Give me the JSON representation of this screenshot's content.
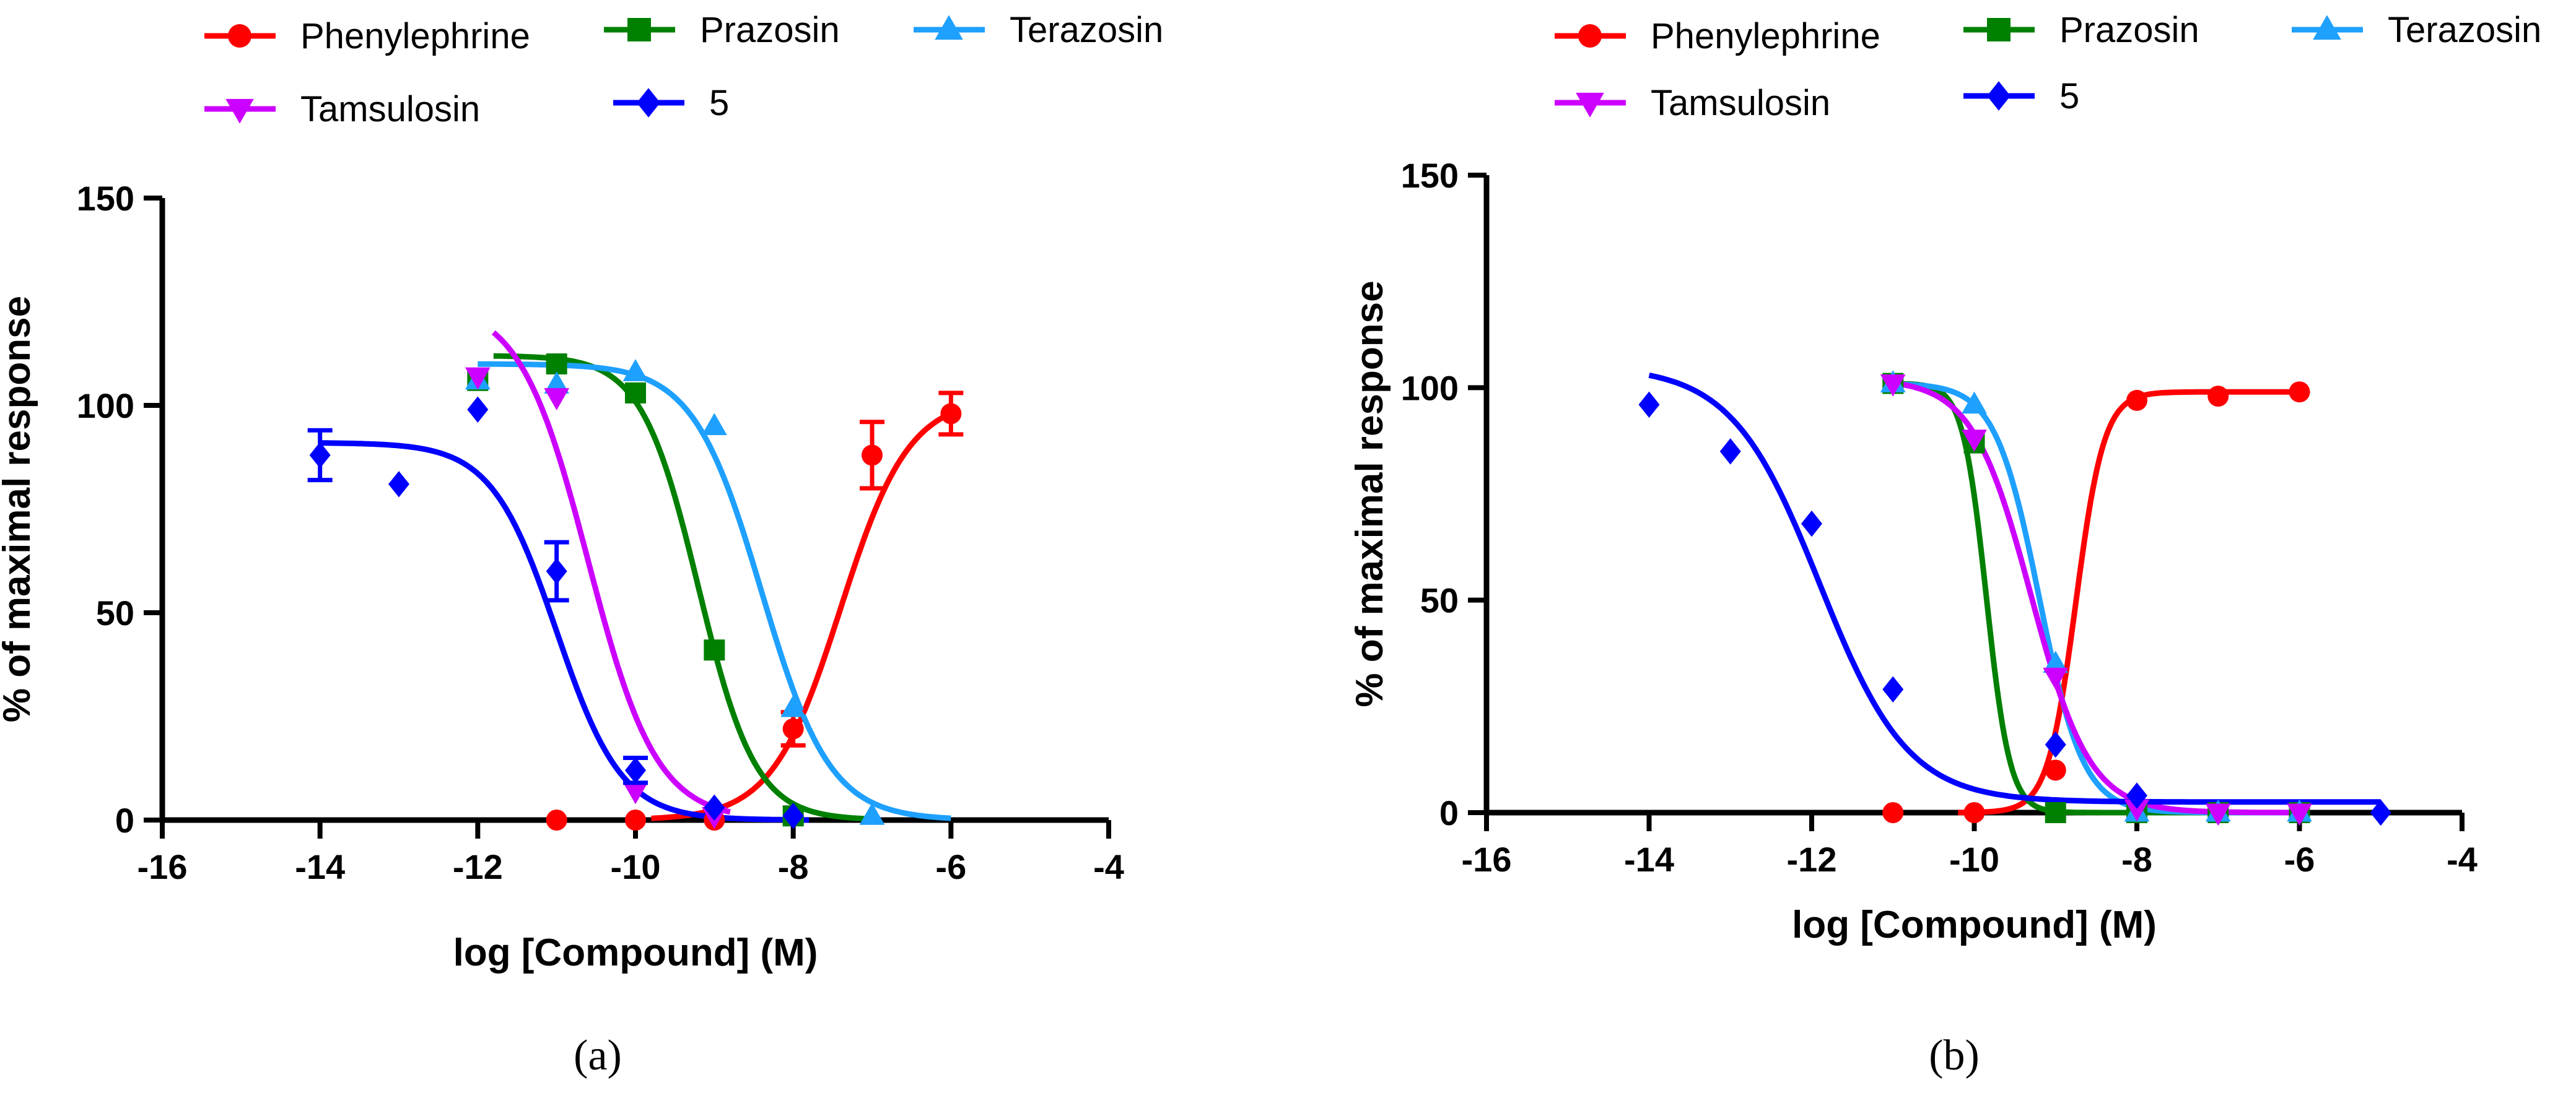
{
  "chart_data": [
    {
      "type": "scatter",
      "title": "",
      "caption": "(a)",
      "xlabel": "log [Compound] (M)",
      "ylabel": "% of maximal response",
      "xlim": [
        -16,
        -4
      ],
      "ylim": [
        0,
        150
      ],
      "xticks": [
        -16,
        -14,
        -12,
        -10,
        -8,
        -6,
        -4
      ],
      "yticks": [
        0,
        50,
        100,
        150
      ],
      "xtick_labels": [
        "-16",
        "-14",
        "-12",
        "-10",
        "-8",
        "-6",
        "-4"
      ],
      "ytick_labels": [
        "0",
        "50",
        "100",
        "150"
      ],
      "grid": false,
      "legend_position": "top",
      "series": [
        {
          "name": "Phenylephrine",
          "color": "#ff0000",
          "marker": "circle",
          "points": [
            {
              "x": -11,
              "y": 0
            },
            {
              "x": -10,
              "y": 0
            },
            {
              "x": -9,
              "y": 0
            },
            {
              "x": -8,
              "y": 22,
              "err": 4
            },
            {
              "x": -7,
              "y": 88,
              "err": 8
            },
            {
              "x": -6,
              "y": 98,
              "err": 5
            }
          ],
          "curve": {
            "bottom": 0,
            "top": 102,
            "logEC50": -7.4,
            "hill": 1.0,
            "xmin": -9.8,
            "xmax": -6.0
          }
        },
        {
          "name": "Prazosin",
          "color": "#008000",
          "marker": "square",
          "points": [
            {
              "x": -12,
              "y": 106
            },
            {
              "x": -11,
              "y": 110
            },
            {
              "x": -10,
              "y": 103
            },
            {
              "x": -9,
              "y": 41
            },
            {
              "x": -8,
              "y": 1
            }
          ],
          "curve": {
            "bottom": 0,
            "top": 112,
            "logEC50": -9.2,
            "hill": -1.2,
            "xmin": -11.8,
            "xmax": -7.0
          }
        },
        {
          "name": "Terazosin",
          "color": "#1ea0ff",
          "marker": "triangle-up",
          "points": [
            {
              "x": -12,
              "y": 106
            },
            {
              "x": -11,
              "y": 105
            },
            {
              "x": -10,
              "y": 108
            },
            {
              "x": -9,
              "y": 95
            },
            {
              "x": -8,
              "y": 27
            },
            {
              "x": -7,
              "y": 1
            }
          ],
          "curve": {
            "bottom": 0,
            "top": 110,
            "logEC50": -8.4,
            "hill": -1.0,
            "xmin": -12.0,
            "xmax": -6.0
          }
        },
        {
          "name": "Tamsulosin",
          "color": "#cc00ff",
          "marker": "triangle-down",
          "points": [
            {
              "x": -12,
              "y": 107
            },
            {
              "x": -11,
              "y": 102
            },
            {
              "x": -10,
              "y": 7
            },
            {
              "x": -9,
              "y": 1
            }
          ],
          "curve": {
            "bottom": 0,
            "top": 125,
            "logEC50": -10.6,
            "hill": -1.0,
            "xmin": -11.8,
            "xmax": -8.8
          }
        },
        {
          "name": "5",
          "color": "#0000ff",
          "marker": "diamond",
          "points": [
            {
              "x": -14,
              "y": 88,
              "err": 6
            },
            {
              "x": -13,
              "y": 81
            },
            {
              "x": -12,
              "y": 99
            },
            {
              "x": -11,
              "y": 60,
              "err": 7
            },
            {
              "x": -10,
              "y": 12,
              "err": 3
            },
            {
              "x": -9,
              "y": 3
            },
            {
              "x": -8,
              "y": 1
            }
          ],
          "curve": {
            "bottom": 0,
            "top": 91,
            "logEC50": -11.0,
            "hill": -1.05,
            "xmin": -14.0,
            "xmax": -7.8
          }
        }
      ]
    },
    {
      "type": "scatter",
      "title": "",
      "caption": "(b)",
      "xlabel": "log [Compound] (M)",
      "ylabel": "% of maximal response",
      "xlim": [
        -16,
        -4
      ],
      "ylim": [
        0,
        150
      ],
      "xticks": [
        -16,
        -14,
        -12,
        -10,
        -8,
        -6,
        -4
      ],
      "yticks": [
        0,
        50,
        100,
        150
      ],
      "xtick_labels": [
        "-16",
        "-14",
        "-12",
        "-10",
        "-8",
        "-6",
        "-4"
      ],
      "ytick_labels": [
        "0",
        "50",
        "100",
        "150"
      ],
      "grid": false,
      "legend_position": "top",
      "series": [
        {
          "name": "Phenylephrine",
          "color": "#ff0000",
          "marker": "circle",
          "points": [
            {
              "x": -11,
              "y": 0
            },
            {
              "x": -10,
              "y": 0
            },
            {
              "x": -9,
              "y": 10
            },
            {
              "x": -8,
              "y": 97
            },
            {
              "x": -7,
              "y": 98
            },
            {
              "x": -6,
              "y": 99
            }
          ],
          "curve": {
            "bottom": 0,
            "top": 99,
            "logEC50": -8.75,
            "hill": 2.5,
            "xmin": -10.2,
            "xmax": -6.0
          }
        },
        {
          "name": "Prazosin",
          "color": "#008000",
          "marker": "square",
          "points": [
            {
              "x": -11,
              "y": 101
            },
            {
              "x": -10,
              "y": 87
            },
            {
              "x": -9,
              "y": 0
            },
            {
              "x": -8,
              "y": 0
            },
            {
              "x": -7,
              "y": 0
            },
            {
              "x": -6,
              "y": 0
            }
          ],
          "curve": {
            "bottom": 0,
            "top": 101,
            "logEC50": -9.85,
            "hill": -3.0,
            "xmin": -11.0,
            "xmax": -6.0
          }
        },
        {
          "name": "Terazosin",
          "color": "#1ea0ff",
          "marker": "triangle-up",
          "points": [
            {
              "x": -11,
              "y": 101
            },
            {
              "x": -10,
              "y": 96
            },
            {
              "x": -9,
              "y": 35
            },
            {
              "x": -8,
              "y": 0
            },
            {
              "x": -7,
              "y": 0
            },
            {
              "x": -6,
              "y": 0
            }
          ],
          "curve": {
            "bottom": 0,
            "top": 101,
            "logEC50": -9.2,
            "hill": -1.6,
            "xmin": -11.0,
            "xmax": -6.0
          }
        },
        {
          "name": "Tamsulosin",
          "color": "#cc00ff",
          "marker": "triangle-down",
          "points": [
            {
              "x": -11,
              "y": 101
            },
            {
              "x": -10,
              "y": 88
            },
            {
              "x": -9,
              "y": 32
            },
            {
              "x": -8,
              "y": 1
            },
            {
              "x": -7,
              "y": 0
            },
            {
              "x": -6,
              "y": 0
            }
          ],
          "curve": {
            "bottom": 0,
            "top": 102,
            "logEC50": -9.3,
            "hill": -1.2,
            "xmin": -11.0,
            "xmax": -6.0
          }
        },
        {
          "name": "5",
          "color": "#0000ff",
          "marker": "diamond",
          "points": [
            {
              "x": -14,
              "y": 96
            },
            {
              "x": -13,
              "y": 85
            },
            {
              "x": -12,
              "y": 68
            },
            {
              "x": -11,
              "y": 29
            },
            {
              "x": -9,
              "y": 16
            },
            {
              "x": -8,
              "y": 4
            },
            {
              "x": -5,
              "y": 0
            }
          ],
          "curve": {
            "bottom": 2.5,
            "top": 105,
            "logEC50": -11.9,
            "hill": -0.8,
            "xmin": -14.0,
            "xmax": -5.0
          }
        }
      ]
    }
  ]
}
